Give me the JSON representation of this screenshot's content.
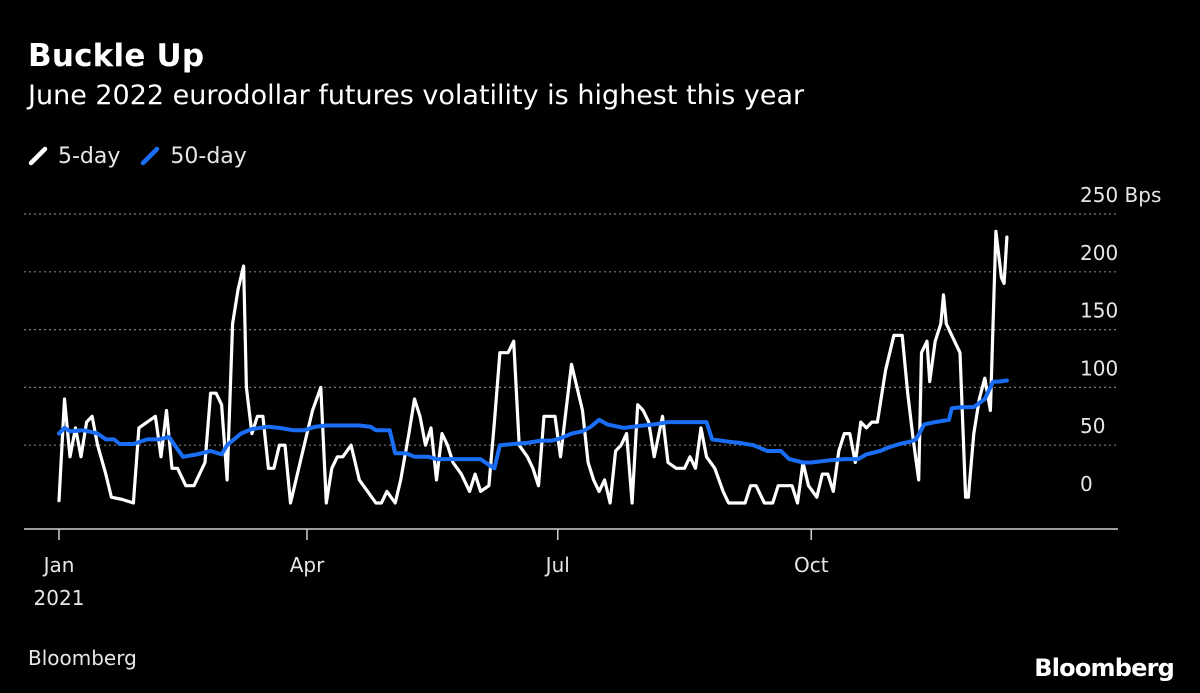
{
  "header": {
    "title": "Buckle Up",
    "subtitle": "June 2022 eurodollar futures volatility is highest this year"
  },
  "legend": [
    {
      "label": "5-day",
      "color": "#ffffff",
      "icon": "legend-slash-icon"
    },
    {
      "label": "50-day",
      "color": "#1a6ef5",
      "icon": "legend-slash-icon"
    }
  ],
  "footer": {
    "source": "Bloomberg",
    "logo": "Bloomberg"
  },
  "chart_data": {
    "type": "line",
    "title": "Buckle Up",
    "subtitle": "June 2022 eurodollar futures volatility is highest this year",
    "y_unit": "Bps",
    "ylim": [
      0,
      250
    ],
    "y_ticks": [
      0,
      50,
      100,
      150,
      200,
      250
    ],
    "y_tick_labels": [
      "0",
      "50",
      "100",
      "150",
      "200",
      "250 Bps"
    ],
    "xlim": [
      "2021-01-01",
      "2021-12-31"
    ],
    "x_ticks": [
      {
        "date": "2021-01-01",
        "label": "Jan",
        "sublabel": "2021"
      },
      {
        "date": "2021-04-01",
        "label": "Apr",
        "sublabel": ""
      },
      {
        "date": "2021-07-01",
        "label": "Jul",
        "sublabel": ""
      },
      {
        "date": "2021-10-01",
        "label": "Oct",
        "sublabel": ""
      }
    ],
    "grid": "horizontal-dotted",
    "legend_position": "top-left",
    "series": [
      {
        "name": "5-day",
        "color": "#ffffff",
        "points": [
          [
            "2021-01-01",
            2
          ],
          [
            "2021-01-03",
            90
          ],
          [
            "2021-01-05",
            40
          ],
          [
            "2021-01-07",
            65
          ],
          [
            "2021-01-09",
            40
          ],
          [
            "2021-01-11",
            70
          ],
          [
            "2021-01-13",
            75
          ],
          [
            "2021-01-15",
            50
          ],
          [
            "2021-01-18",
            25
          ],
          [
            "2021-01-20",
            5
          ],
          [
            "2021-01-24",
            3
          ],
          [
            "2021-01-28",
            0
          ],
          [
            "2021-01-30",
            65
          ],
          [
            "2021-02-02",
            70
          ],
          [
            "2021-02-05",
            75
          ],
          [
            "2021-02-07",
            40
          ],
          [
            "2021-02-09",
            80
          ],
          [
            "2021-02-11",
            30
          ],
          [
            "2021-02-13",
            30
          ],
          [
            "2021-02-16",
            15
          ],
          [
            "2021-02-19",
            15
          ],
          [
            "2021-02-21",
            25
          ],
          [
            "2021-02-23",
            35
          ],
          [
            "2021-02-25",
            95
          ],
          [
            "2021-02-27",
            95
          ],
          [
            "2021-03-01",
            85
          ],
          [
            "2021-03-03",
            20
          ],
          [
            "2021-03-05",
            155
          ],
          [
            "2021-03-07",
            185
          ],
          [
            "2021-03-09",
            205
          ],
          [
            "2021-03-10",
            100
          ],
          [
            "2021-03-12",
            60
          ],
          [
            "2021-03-14",
            75
          ],
          [
            "2021-03-16",
            75
          ],
          [
            "2021-03-18",
            30
          ],
          [
            "2021-03-20",
            30
          ],
          [
            "2021-03-22",
            50
          ],
          [
            "2021-03-24",
            50
          ],
          [
            "2021-03-26",
            0
          ],
          [
            "2021-03-28",
            20
          ],
          [
            "2021-03-31",
            50
          ],
          [
            "2021-04-03",
            80
          ],
          [
            "2021-04-06",
            100
          ],
          [
            "2021-04-08",
            0
          ],
          [
            "2021-04-10",
            30
          ],
          [
            "2021-04-12",
            40
          ],
          [
            "2021-04-14",
            40
          ],
          [
            "2021-04-17",
            50
          ],
          [
            "2021-04-20",
            20
          ],
          [
            "2021-04-23",
            10
          ],
          [
            "2021-04-26",
            0
          ],
          [
            "2021-04-28",
            0
          ],
          [
            "2021-04-30",
            10
          ],
          [
            "2021-05-03",
            0
          ],
          [
            "2021-05-05",
            20
          ],
          [
            "2021-05-08",
            60
          ],
          [
            "2021-05-10",
            90
          ],
          [
            "2021-05-12",
            75
          ],
          [
            "2021-05-14",
            50
          ],
          [
            "2021-05-16",
            65
          ],
          [
            "2021-05-18",
            20
          ],
          [
            "2021-05-20",
            60
          ],
          [
            "2021-05-22",
            50
          ],
          [
            "2021-05-24",
            35
          ],
          [
            "2021-05-27",
            25
          ],
          [
            "2021-05-30",
            10
          ],
          [
            "2021-06-01",
            25
          ],
          [
            "2021-06-03",
            10
          ],
          [
            "2021-06-06",
            15
          ],
          [
            "2021-06-08",
            70
          ],
          [
            "2021-06-10",
            130
          ],
          [
            "2021-06-13",
            130
          ],
          [
            "2021-06-15",
            140
          ],
          [
            "2021-06-17",
            50
          ],
          [
            "2021-06-20",
            40
          ],
          [
            "2021-06-22",
            30
          ],
          [
            "2021-06-24",
            15
          ],
          [
            "2021-06-26",
            75
          ],
          [
            "2021-06-28",
            75
          ],
          [
            "2021-06-30",
            75
          ],
          [
            "2021-07-02",
            40
          ],
          [
            "2021-07-04",
            80
          ],
          [
            "2021-07-06",
            120
          ],
          [
            "2021-07-08",
            100
          ],
          [
            "2021-07-10",
            80
          ],
          [
            "2021-07-12",
            35
          ],
          [
            "2021-07-14",
            20
          ],
          [
            "2021-07-16",
            10
          ],
          [
            "2021-07-18",
            20
          ],
          [
            "2021-07-20",
            0
          ],
          [
            "2021-07-22",
            45
          ],
          [
            "2021-07-24",
            50
          ],
          [
            "2021-07-26",
            60
          ],
          [
            "2021-07-28",
            0
          ],
          [
            "2021-07-30",
            85
          ],
          [
            "2021-08-01",
            80
          ],
          [
            "2021-08-03",
            70
          ],
          [
            "2021-08-05",
            40
          ],
          [
            "2021-08-08",
            75
          ],
          [
            "2021-08-10",
            35
          ],
          [
            "2021-08-13",
            30
          ],
          [
            "2021-08-16",
            30
          ],
          [
            "2021-08-18",
            40
          ],
          [
            "2021-08-20",
            30
          ],
          [
            "2021-08-22",
            65
          ],
          [
            "2021-08-24",
            40
          ],
          [
            "2021-08-27",
            30
          ],
          [
            "2021-08-30",
            10
          ],
          [
            "2021-09-01",
            0
          ],
          [
            "2021-09-04",
            0
          ],
          [
            "2021-09-07",
            0
          ],
          [
            "2021-09-09",
            15
          ],
          [
            "2021-09-11",
            15
          ],
          [
            "2021-09-14",
            0
          ],
          [
            "2021-09-17",
            0
          ],
          [
            "2021-09-19",
            15
          ],
          [
            "2021-09-21",
            15
          ],
          [
            "2021-09-24",
            15
          ],
          [
            "2021-09-26",
            0
          ],
          [
            "2021-09-28",
            35
          ],
          [
            "2021-09-30",
            15
          ],
          [
            "2021-10-03",
            5
          ],
          [
            "2021-10-05",
            25
          ],
          [
            "2021-10-07",
            25
          ],
          [
            "2021-10-09",
            10
          ],
          [
            "2021-10-11",
            45
          ],
          [
            "2021-10-13",
            60
          ],
          [
            "2021-10-15",
            60
          ],
          [
            "2021-10-17",
            35
          ],
          [
            "2021-10-19",
            70
          ],
          [
            "2021-10-21",
            65
          ],
          [
            "2021-10-23",
            70
          ],
          [
            "2021-10-25",
            70
          ],
          [
            "2021-10-28",
            115
          ],
          [
            "2021-10-31",
            145
          ],
          [
            "2021-11-03",
            145
          ],
          [
            "2021-11-05",
            95
          ],
          [
            "2021-11-07",
            55
          ],
          [
            "2021-11-09",
            20
          ],
          [
            "2021-11-10",
            130
          ],
          [
            "2021-11-12",
            140
          ],
          [
            "2021-11-13",
            105
          ],
          [
            "2021-11-15",
            140
          ],
          [
            "2021-11-17",
            155
          ],
          [
            "2021-11-18",
            180
          ],
          [
            "2021-11-19",
            155
          ],
          [
            "2021-11-21",
            145
          ],
          [
            "2021-11-24",
            130
          ],
          [
            "2021-11-26",
            5
          ],
          [
            "2021-11-27",
            5
          ],
          [
            "2021-11-29",
            60
          ],
          [
            "2021-12-01",
            90
          ],
          [
            "2021-12-03",
            108
          ],
          [
            "2021-12-05",
            80
          ],
          [
            "2021-12-07",
            235
          ],
          [
            "2021-12-09",
            195
          ],
          [
            "2021-12-10",
            190
          ],
          [
            "2021-12-11",
            230
          ]
        ]
      },
      {
        "name": "50-day",
        "color": "#1a6ef5",
        "points": [
          [
            "2021-01-01",
            60
          ],
          [
            "2021-01-03",
            65
          ],
          [
            "2021-01-05",
            62
          ],
          [
            "2021-01-10",
            63
          ],
          [
            "2021-01-15",
            60
          ],
          [
            "2021-01-18",
            55
          ],
          [
            "2021-01-21",
            55
          ],
          [
            "2021-01-23",
            51
          ],
          [
            "2021-01-28",
            51
          ],
          [
            "2021-02-02",
            55
          ],
          [
            "2021-02-06",
            55
          ],
          [
            "2021-02-10",
            57
          ],
          [
            "2021-02-12",
            50
          ],
          [
            "2021-02-15",
            40
          ],
          [
            "2021-02-20",
            42
          ],
          [
            "2021-02-25",
            45
          ],
          [
            "2021-03-01",
            42
          ],
          [
            "2021-03-03",
            50
          ],
          [
            "2021-03-08",
            60
          ],
          [
            "2021-03-12",
            64
          ],
          [
            "2021-03-18",
            66
          ],
          [
            "2021-03-22",
            65
          ],
          [
            "2021-03-27",
            63
          ],
          [
            "2021-03-31",
            63
          ],
          [
            "2021-04-04",
            66
          ],
          [
            "2021-04-08",
            67
          ],
          [
            "2021-04-14",
            67
          ],
          [
            "2021-04-20",
            67
          ],
          [
            "2021-04-24",
            66
          ],
          [
            "2021-04-26",
            63
          ],
          [
            "2021-05-01",
            63
          ],
          [
            "2021-05-03",
            43
          ],
          [
            "2021-05-07",
            43
          ],
          [
            "2021-05-10",
            40
          ],
          [
            "2021-05-15",
            40
          ],
          [
            "2021-05-18",
            38
          ],
          [
            "2021-05-23",
            38
          ],
          [
            "2021-05-29",
            38
          ],
          [
            "2021-06-03",
            38
          ],
          [
            "2021-06-06",
            33
          ],
          [
            "2021-06-08",
            30
          ],
          [
            "2021-06-10",
            50
          ],
          [
            "2021-06-15",
            51
          ],
          [
            "2021-06-20",
            52
          ],
          [
            "2021-06-25",
            54
          ],
          [
            "2021-06-29",
            54
          ],
          [
            "2021-07-02",
            56
          ],
          [
            "2021-07-06",
            60
          ],
          [
            "2021-07-10",
            62
          ],
          [
            "2021-07-13",
            66
          ],
          [
            "2021-07-16",
            72
          ],
          [
            "2021-07-19",
            68
          ],
          [
            "2021-07-25",
            65
          ],
          [
            "2021-08-01",
            67
          ],
          [
            "2021-08-05",
            68
          ],
          [
            "2021-08-10",
            70
          ],
          [
            "2021-08-15",
            70
          ],
          [
            "2021-08-20",
            70
          ],
          [
            "2021-08-24",
            70
          ],
          [
            "2021-08-26",
            55
          ],
          [
            "2021-09-01",
            53
          ],
          [
            "2021-09-05",
            52
          ],
          [
            "2021-09-10",
            50
          ],
          [
            "2021-09-15",
            45
          ],
          [
            "2021-09-20",
            45
          ],
          [
            "2021-09-23",
            38
          ],
          [
            "2021-09-28",
            35
          ],
          [
            "2021-10-01",
            35
          ],
          [
            "2021-10-08",
            37
          ],
          [
            "2021-10-13",
            38
          ],
          [
            "2021-10-18",
            38
          ],
          [
            "2021-10-21",
            42
          ],
          [
            "2021-10-26",
            45
          ],
          [
            "2021-10-29",
            48
          ],
          [
            "2021-11-02",
            51
          ],
          [
            "2021-11-06",
            53
          ],
          [
            "2021-11-08",
            55
          ],
          [
            "2021-11-11",
            68
          ],
          [
            "2021-11-15",
            70
          ],
          [
            "2021-11-20",
            72
          ],
          [
            "2021-11-21",
            82
          ],
          [
            "2021-11-25",
            83
          ],
          [
            "2021-11-29",
            83
          ],
          [
            "2021-12-03",
            90
          ],
          [
            "2021-12-06",
            105
          ],
          [
            "2021-12-08",
            105
          ],
          [
            "2021-12-11",
            106
          ]
        ]
      }
    ]
  }
}
